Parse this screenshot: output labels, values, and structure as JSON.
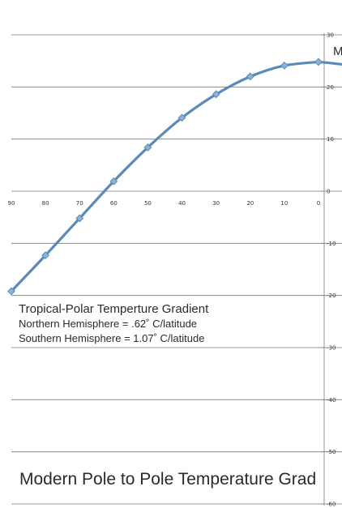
{
  "chart_data": {
    "type": "line",
    "x": [
      90,
      80,
      70,
      60,
      50,
      40,
      30,
      20,
      10,
      0
    ],
    "x_ticks": [
      "90",
      "80",
      "70",
      "60",
      "50",
      "40",
      "30",
      "20",
      "10",
      "0"
    ],
    "y_ticks": [
      "30",
      "20",
      "10",
      "0",
      "-10",
      "-20",
      "-30",
      "-40",
      "-50",
      "-60"
    ],
    "ylim": [
      -60,
      30
    ],
    "xlim": [
      -8,
      95
    ],
    "x_reversed": true,
    "grid": true,
    "series": [
      {
        "values": [
          -19.2,
          -12.3,
          -5.2,
          1.9,
          8.4,
          14.1,
          18.6,
          22.0,
          24.1,
          24.8
        ],
        "color": "#5b8ab8",
        "marker_color": "#8fb3d8"
      }
    ],
    "title_partial": "M",
    "annotations": [
      "Tropical-Polar Temperture Gradient",
      "Northern Hemisphere = .62˚ C/latitude",
      "Southern Hemisphere = 1.07˚ C/latitude"
    ],
    "caption": "Modern Pole to Pole Temperature Grad"
  }
}
